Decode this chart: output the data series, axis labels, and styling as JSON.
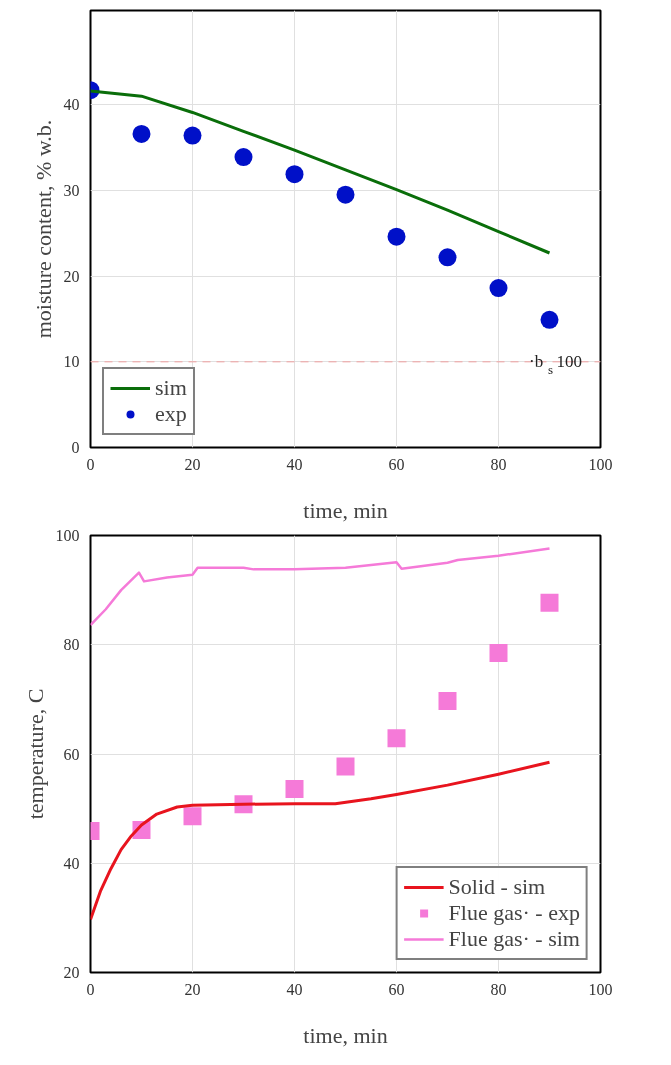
{
  "chart_data": [
    {
      "type": "scatter",
      "xlabel": "time, min",
      "ylabel": "moisture content, % w.b.",
      "xlim": [
        0,
        100
      ],
      "ylim": [
        0,
        51
      ],
      "xticks": [
        0,
        20,
        40,
        60,
        80,
        100
      ],
      "yticks": [
        0,
        10,
        20,
        30,
        40
      ],
      "grid": true,
      "legend": "bottom left",
      "series": [
        {
          "name": "sim",
          "type": "line",
          "color": "#0a6e0a",
          "marker": "none",
          "x": [
            0,
            10,
            20,
            30,
            40,
            50,
            60,
            70,
            80,
            90
          ],
          "values": [
            41.6,
            41.0,
            39.1,
            36.9,
            34.7,
            32.4,
            30.1,
            27.7,
            25.2,
            22.7
          ]
        },
        {
          "name": "exp",
          "color": "#0010c8",
          "marker": "circle",
          "x": [
            0,
            10,
            20,
            30,
            40,
            50,
            60,
            70,
            80,
            90
          ],
          "values": [
            41.7,
            36.6,
            36.4,
            33.9,
            31.9,
            29.5,
            24.6,
            22.2,
            18.6,
            14.9
          ]
        }
      ],
      "ref_lines": [
        {
          "axis": "y",
          "value": 10,
          "label": "·b$_{s}$ 100",
          "color": "#f0a0a0",
          "line_style": "dashed"
        }
      ]
    },
    {
      "type": "line",
      "xlabel": "time, min",
      "ylabel": "temperature, C",
      "xlim": [
        0,
        100
      ],
      "ylim": [
        20,
        100
      ],
      "xticks": [
        0,
        20,
        40,
        60,
        80,
        100
      ],
      "yticks": [
        20,
        40,
        60,
        80,
        100
      ],
      "grid": true,
      "legend": "bottom right",
      "series": [
        {
          "name": "Solid - sim",
          "color": "#e8141e",
          "marker": "none",
          "x": [
            0,
            2,
            4,
            6,
            8,
            10,
            13,
            17,
            20,
            30,
            40,
            48,
            55,
            60,
            70,
            80,
            90
          ],
          "values": [
            29.7,
            35,
            39,
            42.5,
            45,
            47,
            49,
            50.3,
            50.6,
            50.8,
            50.9,
            50.9,
            51.8,
            52.6,
            54.3,
            56.3,
            58.5
          ]
        },
        {
          "name": "Flue gas· - exp",
          "type": "scatter",
          "color": "#f57ad8",
          "marker": "square",
          "x": [
            0,
            10,
            20,
            30,
            40,
            50,
            60,
            70,
            80,
            90
          ],
          "values": [
            45.9,
            46.1,
            48.6,
            50.8,
            53.6,
            57.7,
            62.9,
            69.7,
            78.5,
            87.7
          ]
        },
        {
          "name": "Flue gas· - sim",
          "color": "#f57ad8",
          "marker": "none",
          "x": [
            0,
            3,
            6,
            9.5,
            10.5,
            15,
            20,
            21,
            30,
            32,
            40,
            50,
            60,
            61,
            70,
            72,
            80,
            90
          ],
          "values": [
            83.6,
            86.5,
            90,
            93.2,
            91.6,
            92.3,
            92.8,
            94.1,
            94.1,
            93.8,
            93.8,
            94.1,
            95.1,
            93.9,
            95.0,
            95.5,
            96.3,
            97.6
          ]
        }
      ]
    }
  ]
}
